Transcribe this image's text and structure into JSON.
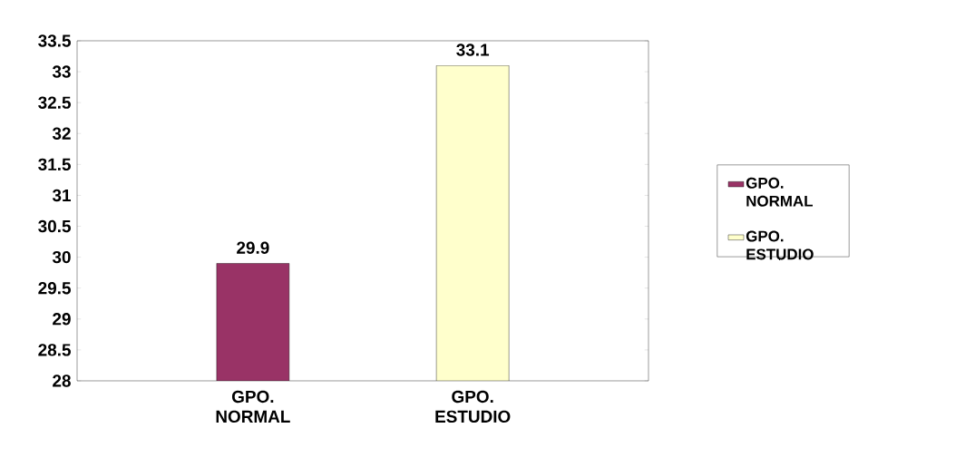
{
  "chart_data": {
    "type": "bar",
    "categories": [
      "GPO. NORMAL",
      "GPO. ESTUDIO"
    ],
    "series": [
      {
        "name": "GPO. NORMAL",
        "color": "#993366",
        "values": [
          29.9,
          null
        ]
      },
      {
        "name": "GPO. ESTUDIO",
        "color": "#ffffcc",
        "values": [
          null,
          33.1
        ]
      }
    ],
    "ylim": [
      28,
      33.5
    ],
    "yticks": [
      28,
      28.5,
      29,
      29.5,
      30,
      30.5,
      31,
      31.5,
      32,
      32.5,
      33,
      33.5
    ],
    "data_labels": true,
    "legend": "right",
    "grid": false
  }
}
